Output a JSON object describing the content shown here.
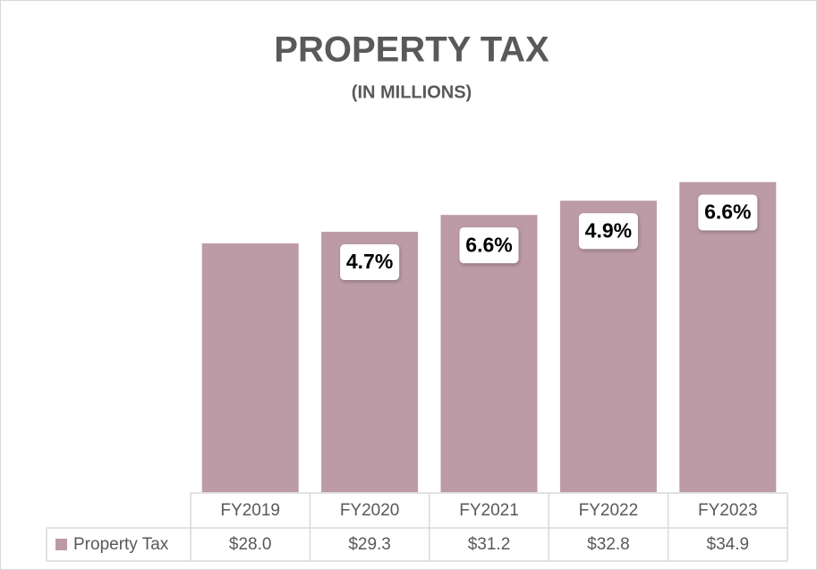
{
  "chart_data": {
    "type": "bar",
    "title": "PROPERTY TAX",
    "subtitle": "(IN MILLIONS)",
    "categories": [
      "FY2019",
      "FY2020",
      "FY2021",
      "FY2022",
      "FY2023"
    ],
    "series": [
      {
        "name": "Property Tax",
        "color": "#bc9ba6",
        "values": [
          28.0,
          29.3,
          31.2,
          32.8,
          34.9
        ],
        "value_labels": [
          "$28.0",
          "$29.3",
          "$31.2",
          "$32.8",
          "$34.9"
        ],
        "growth": [
          null,
          4.7,
          6.6,
          4.9,
          6.6
        ],
        "growth_labels": [
          null,
          "4.7%",
          "6.6%",
          "4.9%",
          "6.6%"
        ]
      }
    ]
  }
}
